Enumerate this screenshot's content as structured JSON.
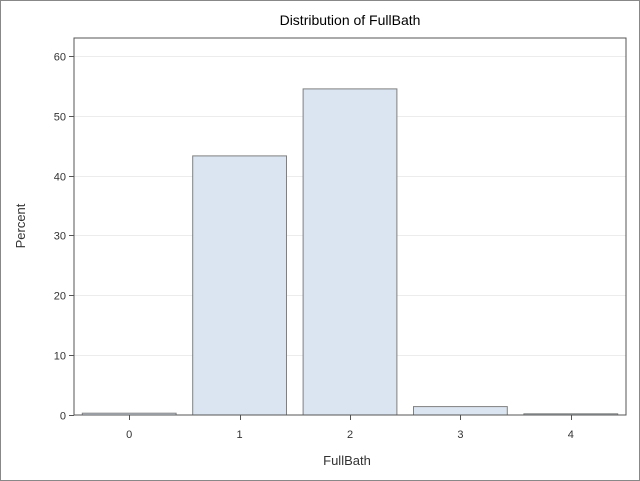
{
  "chart_data": {
    "type": "bar",
    "title": "Distribution of FullBath",
    "xlabel": "FullBath",
    "ylabel": "Percent",
    "categories": [
      "0",
      "1",
      "2",
      "3",
      "4"
    ],
    "values": [
      0.3,
      43.3,
      54.5,
      1.4,
      0.2
    ],
    "ylim": [
      0,
      63
    ],
    "yticks": [
      0,
      10,
      20,
      30,
      40,
      50,
      60
    ],
    "grid": true,
    "colors": {
      "bar_fill": "#dbe5f1",
      "bar_stroke": "#7f8080"
    }
  }
}
